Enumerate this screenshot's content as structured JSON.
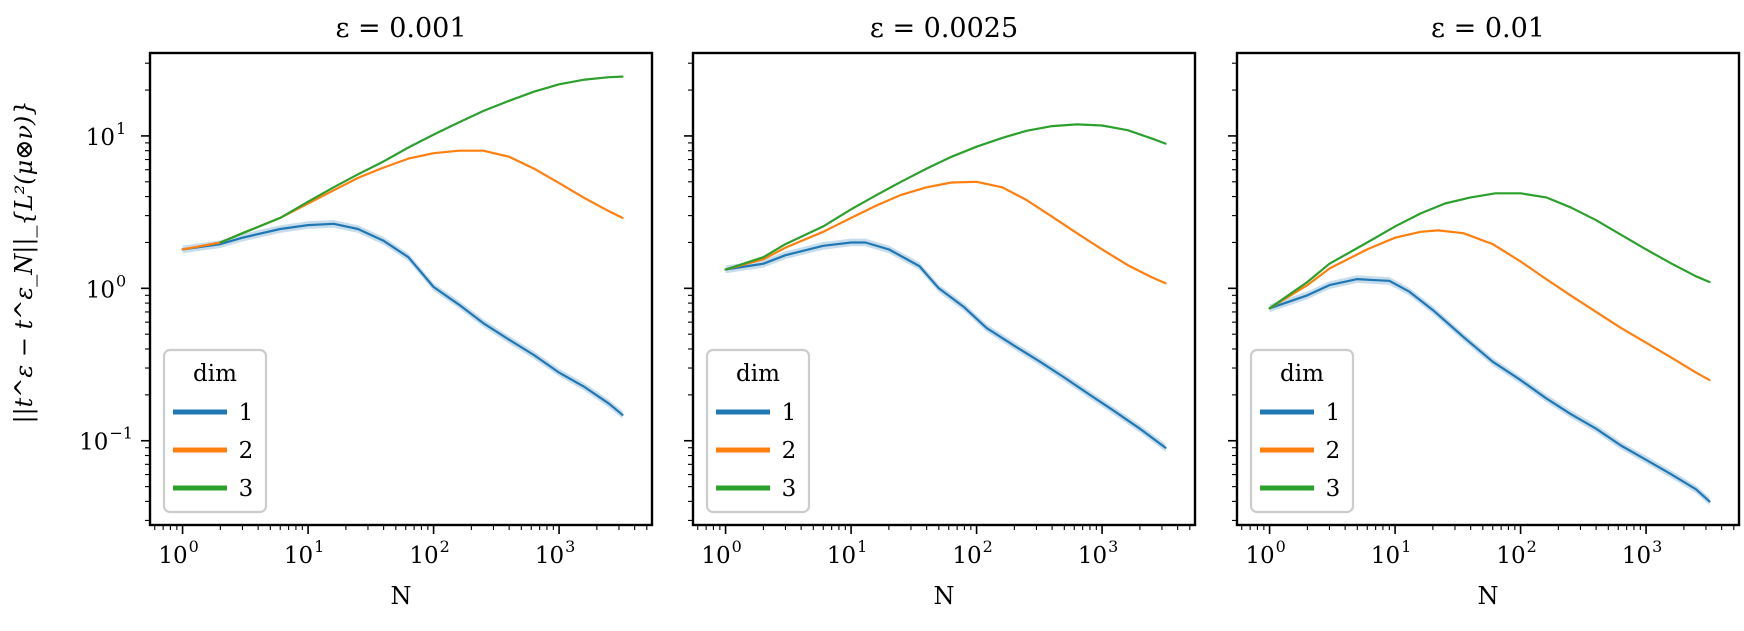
{
  "figure": {
    "ylabel": "||t^ε − t^ε_N||_{L²(μ⊗ν)}",
    "colors": {
      "1": "#1f77b4",
      "2": "#ff7f0e",
      "3": "#2ca02c"
    }
  },
  "chart_data": [
    {
      "type": "line",
      "title": "ε = 0.001",
      "xlabel": "N",
      "ylabel": "||t^ε − t^ε_N||_{L²(μ⊗ν)}",
      "xscale": "log",
      "yscale": "log",
      "xlim": [
        0.55,
        5500
      ],
      "ylim": [
        0.028,
        35
      ],
      "xticks": [
        1,
        10,
        100,
        1000
      ],
      "xtick_labels": [
        "10",
        "10",
        "10",
        "10"
      ],
      "xtick_exps": [
        "0",
        "1",
        "2",
        "3"
      ],
      "yticks": [
        0.1,
        1,
        10
      ],
      "ytick_labels": [
        "10",
        "10",
        "10"
      ],
      "ytick_exps": [
        "−1",
        "0",
        "1"
      ],
      "legend": {
        "title": "dim",
        "location": "lower-left",
        "entries": [
          "1",
          "2",
          "3"
        ]
      },
      "series": [
        {
          "name": "1",
          "x": [
            1,
            2,
            3,
            6,
            10,
            16,
            25,
            40,
            63,
            100,
            160,
            250,
            400,
            630,
            1000,
            1600,
            2500,
            3200
          ],
          "y": [
            1.8,
            1.95,
            2.15,
            2.45,
            2.6,
            2.65,
            2.45,
            2.05,
            1.6,
            1.02,
            0.78,
            0.59,
            0.46,
            0.365,
            0.28,
            0.225,
            0.175,
            0.148
          ]
        },
        {
          "name": "2",
          "x": [
            1,
            2,
            3,
            6,
            10,
            16,
            25,
            40,
            63,
            100,
            160,
            250,
            400,
            630,
            1000,
            1600,
            2500,
            3200
          ],
          "y": [
            1.8,
            2.0,
            2.3,
            2.9,
            3.6,
            4.4,
            5.3,
            6.2,
            7.1,
            7.7,
            8.0,
            8.0,
            7.3,
            6.1,
            4.9,
            3.9,
            3.2,
            2.9
          ]
        },
        {
          "name": "3",
          "x": [
            2,
            3,
            6,
            10,
            16,
            25,
            40,
            63,
            100,
            160,
            250,
            400,
            630,
            1000,
            1600,
            2500,
            3200
          ],
          "y": [
            2.0,
            2.3,
            2.9,
            3.7,
            4.6,
            5.6,
            6.8,
            8.4,
            10.2,
            12.3,
            14.6,
            17.0,
            19.5,
            21.8,
            23.4,
            24.3,
            24.5
          ]
        }
      ]
    },
    {
      "type": "line",
      "title": "ε = 0.0025",
      "xlabel": "N",
      "xscale": "log",
      "yscale": "log",
      "xlim": [
        0.55,
        5500
      ],
      "ylim": [
        0.028,
        35
      ],
      "xticks": [
        1,
        10,
        100,
        1000
      ],
      "xtick_labels": [
        "10",
        "10",
        "10",
        "10"
      ],
      "xtick_exps": [
        "0",
        "1",
        "2",
        "3"
      ],
      "yticks": [
        0.1,
        1,
        10
      ],
      "legend": {
        "title": "dim",
        "location": "lower-left",
        "entries": [
          "1",
          "2",
          "3"
        ]
      },
      "series": [
        {
          "name": "1",
          "x": [
            1,
            2,
            3,
            6,
            10,
            13,
            20,
            35,
            50,
            80,
            120,
            200,
            320,
            500,
            800,
            1200,
            2000,
            3200
          ],
          "y": [
            1.33,
            1.45,
            1.65,
            1.9,
            2.0,
            2.0,
            1.8,
            1.4,
            1.0,
            0.75,
            0.55,
            0.42,
            0.33,
            0.26,
            0.2,
            0.16,
            0.12,
            0.09
          ]
        },
        {
          "name": "2",
          "x": [
            1,
            2,
            3,
            6,
            10,
            16,
            25,
            40,
            63,
            100,
            160,
            250,
            400,
            630,
            1000,
            1600,
            2500,
            3200
          ],
          "y": [
            1.33,
            1.55,
            1.85,
            2.35,
            2.9,
            3.5,
            4.1,
            4.6,
            4.95,
            5.0,
            4.6,
            3.8,
            2.95,
            2.3,
            1.8,
            1.42,
            1.18,
            1.08
          ]
        },
        {
          "name": "3",
          "x": [
            1,
            2,
            3,
            6,
            10,
            16,
            25,
            40,
            63,
            100,
            160,
            250,
            400,
            630,
            1000,
            1600,
            2500,
            3200
          ],
          "y": [
            1.33,
            1.6,
            1.95,
            2.55,
            3.3,
            4.1,
            5.0,
            6.1,
            7.3,
            8.5,
            9.7,
            10.8,
            11.6,
            11.9,
            11.7,
            10.9,
            9.6,
            8.9
          ]
        }
      ]
    },
    {
      "type": "line",
      "title": "ε = 0.01",
      "xlabel": "N",
      "xscale": "log",
      "yscale": "log",
      "xlim": [
        0.55,
        5500
      ],
      "ylim": [
        0.028,
        35
      ],
      "xticks": [
        1,
        10,
        100,
        1000
      ],
      "xtick_labels": [
        "10",
        "10",
        "10",
        "10"
      ],
      "xtick_exps": [
        "0",
        "1",
        "2",
        "3"
      ],
      "yticks": [
        0.1,
        1,
        10
      ],
      "legend": {
        "title": "dim",
        "location": "lower-left",
        "entries": [
          "1",
          "2",
          "3"
        ]
      },
      "series": [
        {
          "name": "1",
          "x": [
            1,
            2,
            3,
            5,
            7,
            9,
            13,
            20,
            35,
            60,
            100,
            160,
            250,
            400,
            630,
            1000,
            1600,
            2500,
            3200
          ],
          "y": [
            0.74,
            0.9,
            1.05,
            1.15,
            1.13,
            1.12,
            0.95,
            0.72,
            0.48,
            0.33,
            0.25,
            0.19,
            0.15,
            0.12,
            0.093,
            0.075,
            0.06,
            0.048,
            0.04
          ]
        },
        {
          "name": "2",
          "x": [
            1,
            2,
            3,
            6,
            10,
            16,
            22,
            35,
            60,
            100,
            160,
            250,
            400,
            630,
            1000,
            1600,
            2500,
            3200
          ],
          "y": [
            0.74,
            1.05,
            1.35,
            1.8,
            2.15,
            2.35,
            2.4,
            2.3,
            1.95,
            1.5,
            1.15,
            0.9,
            0.7,
            0.55,
            0.44,
            0.35,
            0.28,
            0.25
          ]
        },
        {
          "name": "3",
          "x": [
            1,
            2,
            3,
            6,
            10,
            16,
            25,
            40,
            63,
            100,
            160,
            250,
            400,
            630,
            1000,
            1600,
            2500,
            3200
          ],
          "y": [
            0.74,
            1.1,
            1.45,
            2.0,
            2.55,
            3.1,
            3.6,
            3.95,
            4.2,
            4.2,
            3.95,
            3.4,
            2.8,
            2.25,
            1.8,
            1.45,
            1.2,
            1.1
          ]
        }
      ]
    }
  ]
}
